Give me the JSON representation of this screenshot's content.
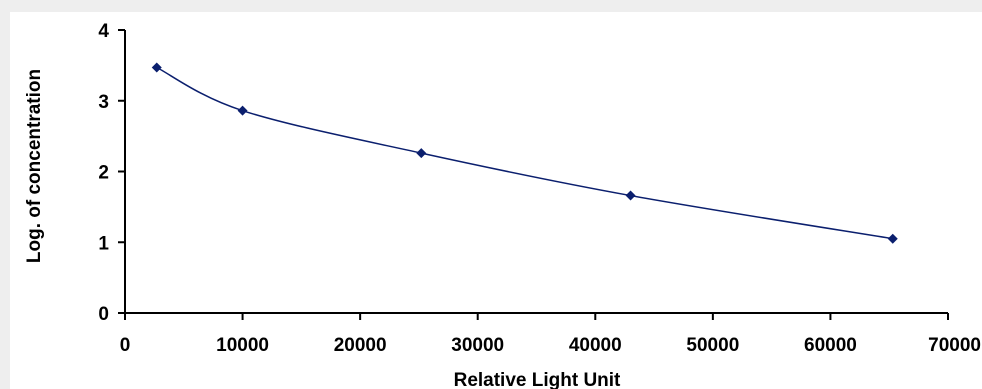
{
  "chart_data": {
    "type": "scatter",
    "title": "",
    "xlabel": "Relative Light Unit",
    "ylabel": "Log. of concentration",
    "xlim": [
      0,
      70000
    ],
    "ylim": [
      0,
      4
    ],
    "xticks": [
      0,
      10000,
      20000,
      30000,
      40000,
      50000,
      60000,
      70000
    ],
    "yticks": [
      0,
      1,
      2,
      3,
      4
    ],
    "xtick_labels": [
      "0",
      "10000",
      "20000",
      "30000",
      "40000",
      "50000",
      "60000",
      "70000"
    ],
    "ytick_labels": [
      "0",
      "1",
      "2",
      "3",
      "4"
    ],
    "grid": false,
    "legend": "none",
    "series": [
      {
        "marker": "diamond",
        "fit": "smooth-curve",
        "color": "#0b1f6e",
        "x": [
          2700,
          10000,
          25200,
          43000,
          65300
        ],
        "y": [
          3.47,
          2.86,
          2.26,
          1.66,
          1.05
        ]
      }
    ]
  }
}
